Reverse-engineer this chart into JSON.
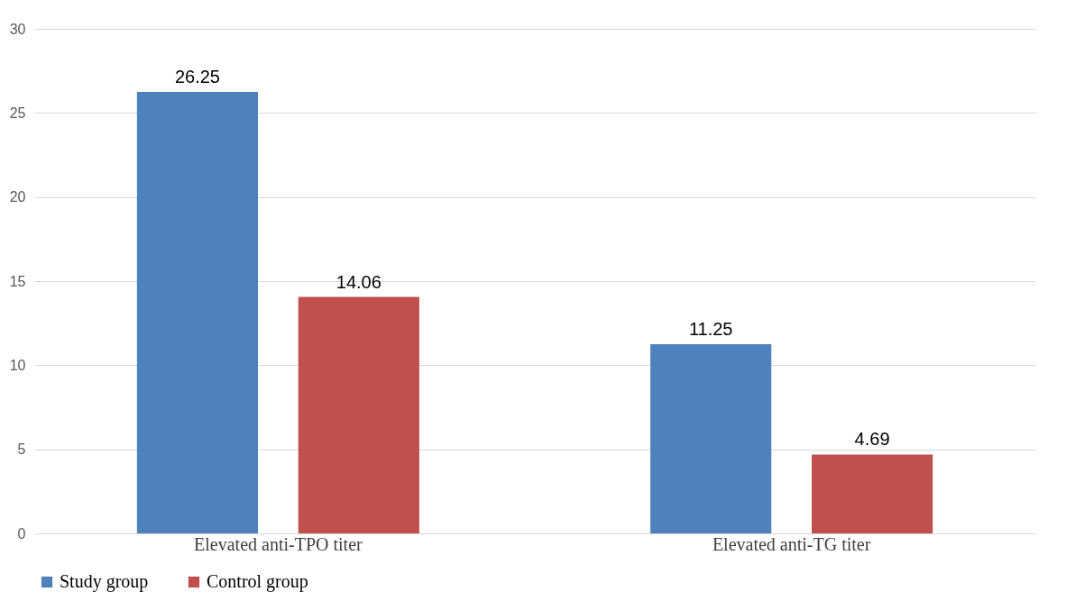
{
  "chart_data": {
    "type": "bar",
    "categories": [
      "Elevated anti-TPO titer",
      "Elevated anti-TG titer"
    ],
    "series": [
      {
        "name": "Study group",
        "color": "#4f81bd",
        "values": [
          26.25,
          11.25
        ]
      },
      {
        "name": "Control group",
        "color": "#c0504d",
        "values": [
          14.06,
          4.69
        ]
      }
    ],
    "ylim": [
      0,
      30
    ],
    "yticks": [
      0,
      5,
      10,
      15,
      20,
      25,
      30
    ],
    "grid": "y",
    "legend": "bottom",
    "data_labels": true
  }
}
